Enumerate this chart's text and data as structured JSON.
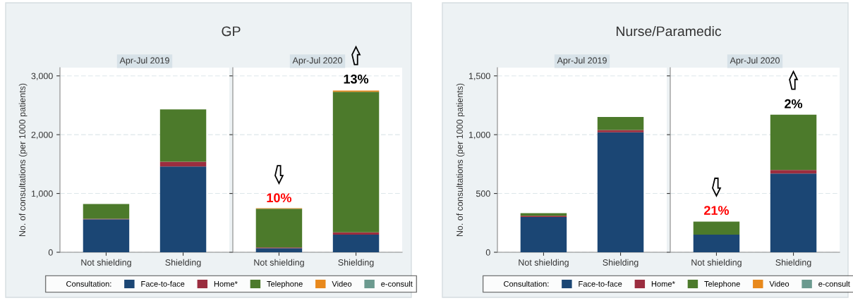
{
  "chart_data": [
    {
      "type": "bar",
      "stacked": true,
      "title": "GP",
      "subtitle": "Apr-Jul 2019",
      "ylabel": "No. of consultations (per 1000 patients)",
      "legend": "bottom",
      "legend_title": "Consultation:",
      "grid": "y",
      "categories": [
        "Not shielding",
        "Shielding"
      ],
      "ylim": [
        0,
        3140
      ],
      "yticks": [
        0,
        {
          "value": 1000,
          "label": "1,000"
        },
        {
          "value": 2000,
          "label": "2,000"
        },
        {
          "value": 3000,
          "label": "3,000"
        }
      ],
      "series": [
        {
          "name": "Face-to-face",
          "color": "#1b4674",
          "values": [
            560,
            1460
          ]
        },
        {
          "name": "Home*",
          "color": "#9b2d3f",
          "values": [
            10,
            80
          ]
        },
        {
          "name": "Telephone",
          "color": "#4c7a2b",
          "values": [
            250,
            890
          ]
        },
        {
          "name": "Video",
          "color": "#e8891c",
          "values": [
            0,
            0
          ]
        },
        {
          "name": "e-consult",
          "color": "#6b9a8f",
          "values": [
            0,
            0
          ]
        }
      ]
    },
    {
      "type": "bar",
      "stacked": true,
      "subtitle": "Apr-Jul 2020",
      "grid": "y",
      "tick_labels": "x",
      "categories": [
        "Not shielding",
        "Shielding"
      ],
      "ylim": [
        0,
        3140
      ],
      "yticks": [
        0,
        1000,
        2000,
        3000
      ],
      "series": [
        {
          "color": "#1b4674",
          "values": [
            70,
            300
          ]
        },
        {
          "color": "#9b2d3f",
          "values": [
            10,
            40
          ]
        },
        {
          "color": "#4c7a2b",
          "values": [
            660,
            2390
          ]
        },
        {
          "color": "#e8891c",
          "values": [
            10,
            20
          ]
        },
        {
          "color": "#6b9a8f",
          "values": [
            0,
            0
          ]
        }
      ],
      "annotations": [
        {
          "text": "10%",
          "x": "Not shielding",
          "y": 740
        },
        {
          "text": "13%",
          "x": "Shielding",
          "y": 2760
        }
      ]
    },
    {
      "type": "bar",
      "stacked": true,
      "title": "Nurse/Paramedic",
      "subtitle": "Apr-Jul 2019",
      "ylabel": "No. of consultations (per 1000 patients)",
      "legend": "bottom",
      "legend_title": "Consultation:",
      "grid": "y",
      "categories": [
        "Not shielding",
        "Shielding"
      ],
      "ylim": [
        0,
        1570
      ],
      "yticks": [
        0,
        500,
        {
          "value": 1000,
          "label": "1,000"
        },
        {
          "value": 1500,
          "label": "1,500"
        }
      ],
      "series": [
        {
          "name": "Face-to-face",
          "color": "#1b4674",
          "values": [
            300,
            1020
          ]
        },
        {
          "name": "Home*",
          "color": "#9b2d3f",
          "values": [
            10,
            20
          ]
        },
        {
          "name": "Telephone",
          "color": "#4c7a2b",
          "values": [
            23,
            110
          ]
        },
        {
          "name": "Video",
          "color": "#e8891c",
          "values": [
            0,
            0
          ]
        },
        {
          "name": "e-consult",
          "color": "#6b9a8f",
          "values": [
            0,
            0
          ]
        }
      ]
    },
    {
      "type": "bar",
      "stacked": true,
      "subtitle": "Apr-Jul 2020",
      "grid": "y",
      "tick_labels": "x",
      "categories": [
        "Not shielding",
        "Shielding"
      ],
      "ylim": [
        0,
        1570
      ],
      "yticks": [
        0,
        500,
        1000,
        1500
      ],
      "series": [
        {
          "color": "#1b4674",
          "values": [
            150,
            670
          ]
        },
        {
          "color": "#9b2d3f",
          "values": [
            0,
            30
          ]
        },
        {
          "color": "#4c7a2b",
          "values": [
            110,
            470
          ]
        },
        {
          "color": "#e8891c",
          "values": [
            0,
            0
          ]
        },
        {
          "color": "#6b9a8f",
          "values": [
            0,
            0
          ]
        }
      ],
      "annotations": [
        {
          "text": "21%",
          "x": "Not shielding",
          "y": 263
        },
        {
          "text": "2%",
          "x": "Shielding",
          "y": 1170
        }
      ]
    }
  ]
}
